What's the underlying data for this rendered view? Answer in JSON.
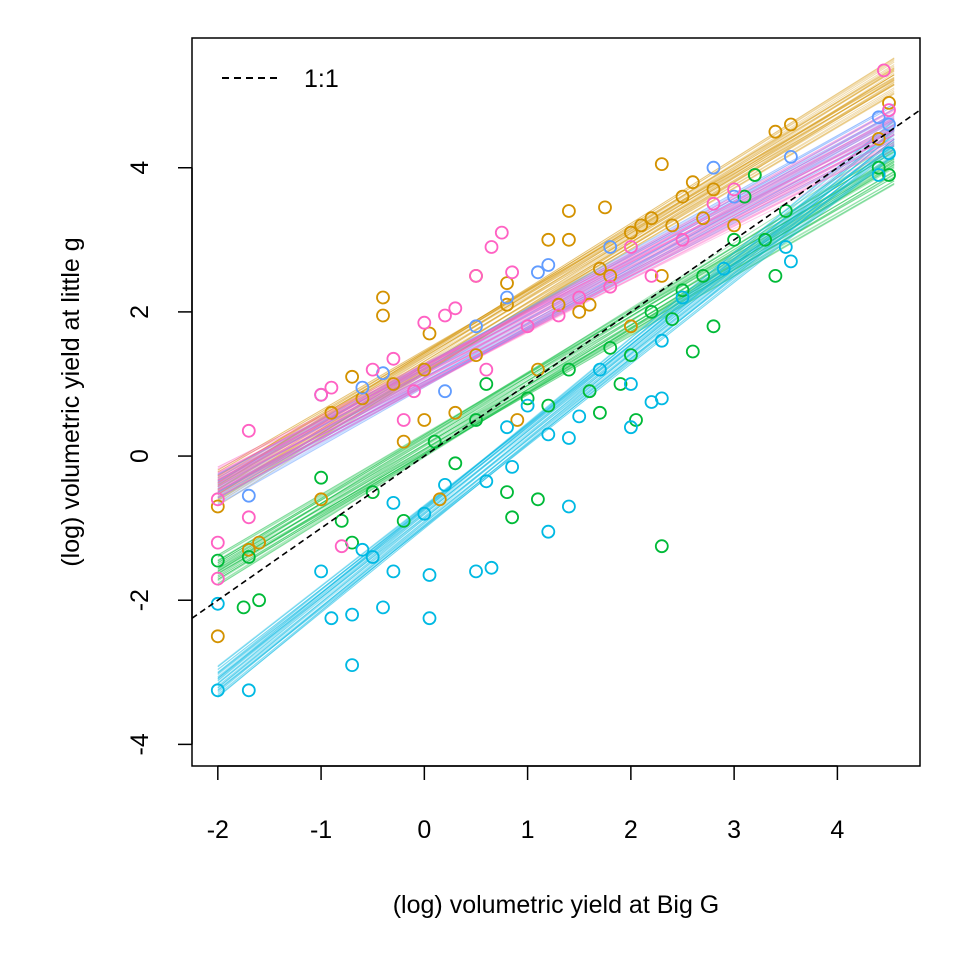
{
  "chart_data": {
    "type": "scatter",
    "title": "",
    "xlabel": "(log) volumetric yield at Big G",
    "ylabel": "(log) volumetric yield at little g",
    "xlim": [
      -2.25,
      4.8
    ],
    "ylim": [
      -4.3,
      5.8
    ],
    "xticks": [
      "-2",
      "-1",
      "0",
      "1",
      "2",
      "3",
      "4"
    ],
    "yticks": [
      "-4",
      "-2",
      "0",
      "2",
      "4"
    ],
    "grid": false,
    "legend": {
      "position": "top-left",
      "entries": [
        {
          "label": "1:1",
          "style": "dashed",
          "color": "#000000"
        }
      ]
    },
    "reference_line": {
      "label": "1:1",
      "slope": 1,
      "intercept": 0
    },
    "series": [
      {
        "color": "#D39200",
        "fit": {
          "x_range": [
            -2,
            4.55
          ],
          "intercept": 1.3,
          "slope": 0.87
        },
        "points": [
          [
            -2.0,
            -2.5
          ],
          [
            -2.0,
            -0.7
          ],
          [
            -1.7,
            -1.3
          ],
          [
            -1.6,
            -1.2
          ],
          [
            -1.0,
            -0.6
          ],
          [
            -0.9,
            0.6
          ],
          [
            -0.7,
            1.1
          ],
          [
            -0.6,
            0.8
          ],
          [
            -0.4,
            2.2
          ],
          [
            -0.4,
            1.95
          ],
          [
            -0.3,
            1.0
          ],
          [
            -0.2,
            0.2
          ],
          [
            0.0,
            0.5
          ],
          [
            0.0,
            1.2
          ],
          [
            0.05,
            1.7
          ],
          [
            0.15,
            -0.6
          ],
          [
            0.3,
            0.6
          ],
          [
            0.5,
            2.5
          ],
          [
            0.5,
            1.4
          ],
          [
            0.8,
            2.4
          ],
          [
            0.8,
            2.1
          ],
          [
            0.9,
            0.5
          ],
          [
            1.1,
            1.2
          ],
          [
            1.2,
            3.0
          ],
          [
            1.3,
            2.1
          ],
          [
            1.4,
            3.4
          ],
          [
            1.4,
            3.0
          ],
          [
            1.5,
            2.0
          ],
          [
            1.6,
            2.1
          ],
          [
            1.7,
            2.6
          ],
          [
            1.75,
            3.45
          ],
          [
            1.8,
            2.5
          ],
          [
            2.0,
            3.1
          ],
          [
            2.0,
            1.8
          ],
          [
            2.1,
            3.2
          ],
          [
            2.2,
            3.3
          ],
          [
            2.3,
            4.05
          ],
          [
            2.3,
            2.5
          ],
          [
            2.4,
            3.2
          ],
          [
            2.5,
            3.6
          ],
          [
            2.6,
            3.8
          ],
          [
            2.7,
            3.3
          ],
          [
            2.8,
            3.7
          ],
          [
            3.0,
            3.2
          ],
          [
            3.1,
            3.6
          ],
          [
            3.2,
            3.9
          ],
          [
            3.4,
            4.5
          ],
          [
            3.55,
            4.6
          ],
          [
            4.4,
            4.4
          ],
          [
            4.5,
            4.9
          ]
        ]
      },
      {
        "color": "#00BA38",
        "fit": {
          "x_range": [
            -2,
            4.55
          ],
          "intercept": 0.15,
          "slope": 0.86
        },
        "points": [
          [
            -2.0,
            -1.45
          ],
          [
            -1.75,
            -2.1
          ],
          [
            -1.7,
            -1.4
          ],
          [
            -1.6,
            -2.0
          ],
          [
            -1.0,
            -0.3
          ],
          [
            -0.8,
            -0.9
          ],
          [
            -0.7,
            -1.2
          ],
          [
            -0.5,
            -0.5
          ],
          [
            -0.2,
            -0.9
          ],
          [
            0.1,
            0.2
          ],
          [
            0.3,
            -0.1
          ],
          [
            0.5,
            0.5
          ],
          [
            0.6,
            1.0
          ],
          [
            0.8,
            -0.5
          ],
          [
            0.85,
            -0.85
          ],
          [
            1.0,
            0.8
          ],
          [
            1.1,
            -0.6
          ],
          [
            1.2,
            0.7
          ],
          [
            1.4,
            1.2
          ],
          [
            1.6,
            0.9
          ],
          [
            1.7,
            0.6
          ],
          [
            1.8,
            1.5
          ],
          [
            1.9,
            1.0
          ],
          [
            2.0,
            1.4
          ],
          [
            2.05,
            0.5
          ],
          [
            2.2,
            2.0
          ],
          [
            2.3,
            -1.25
          ],
          [
            2.4,
            1.9
          ],
          [
            2.5,
            2.3
          ],
          [
            2.6,
            1.45
          ],
          [
            2.7,
            2.5
          ],
          [
            2.8,
            1.8
          ],
          [
            3.0,
            3.0
          ],
          [
            3.1,
            3.6
          ],
          [
            3.2,
            3.9
          ],
          [
            3.3,
            3.0
          ],
          [
            3.4,
            2.5
          ],
          [
            3.5,
            3.4
          ],
          [
            4.4,
            4.0
          ],
          [
            4.5,
            3.9
          ]
        ]
      },
      {
        "color": "#00B9E3",
        "fit": {
          "x_range": [
            -2,
            4.55
          ],
          "intercept": -0.85,
          "slope": 1.15
        },
        "points": [
          [
            -2.0,
            -3.25
          ],
          [
            -2.0,
            -2.05
          ],
          [
            -1.7,
            -3.25
          ],
          [
            -1.0,
            -1.6
          ],
          [
            -0.9,
            -2.25
          ],
          [
            -0.7,
            -2.9
          ],
          [
            -0.7,
            -2.2
          ],
          [
            -0.6,
            -1.3
          ],
          [
            -0.5,
            -1.4
          ],
          [
            -0.4,
            -2.1
          ],
          [
            -0.3,
            -1.6
          ],
          [
            -0.3,
            -0.65
          ],
          [
            0.0,
            -0.8
          ],
          [
            0.05,
            -2.25
          ],
          [
            0.05,
            -1.65
          ],
          [
            0.2,
            -0.4
          ],
          [
            0.5,
            -1.6
          ],
          [
            0.6,
            -0.35
          ],
          [
            0.65,
            -1.55
          ],
          [
            0.8,
            0.4
          ],
          [
            0.85,
            -0.15
          ],
          [
            1.0,
            0.7
          ],
          [
            1.2,
            0.3
          ],
          [
            1.2,
            -1.05
          ],
          [
            1.4,
            0.25
          ],
          [
            1.4,
            -0.7
          ],
          [
            1.5,
            0.55
          ],
          [
            1.7,
            1.2
          ],
          [
            2.0,
            0.4
          ],
          [
            2.0,
            1.0
          ],
          [
            2.2,
            0.75
          ],
          [
            2.3,
            0.8
          ],
          [
            2.3,
            1.6
          ],
          [
            2.5,
            2.2
          ],
          [
            2.9,
            2.6
          ],
          [
            3.5,
            2.9
          ],
          [
            3.55,
            2.7
          ],
          [
            4.4,
            3.9
          ],
          [
            4.5,
            4.2
          ]
        ]
      },
      {
        "color": "#619CFF",
        "fit": {
          "x_range": [
            -2,
            4.55
          ],
          "intercept": 1.12,
          "slope": 0.78
        },
        "points": [
          [
            -1.7,
            -0.55
          ],
          [
            -1.0,
            0.85
          ],
          [
            -0.6,
            0.95
          ],
          [
            -0.4,
            1.15
          ],
          [
            0.2,
            0.9
          ],
          [
            0.5,
            1.8
          ],
          [
            0.8,
            2.2
          ],
          [
            1.1,
            2.55
          ],
          [
            1.2,
            2.65
          ],
          [
            1.8,
            2.9
          ],
          [
            2.8,
            4.0
          ],
          [
            3.0,
            3.6
          ],
          [
            3.55,
            4.15
          ],
          [
            4.4,
            4.7
          ],
          [
            4.5,
            4.6
          ]
        ]
      },
      {
        "color": "#FF61C3",
        "fit": {
          "x_range": [
            -2,
            4.55
          ],
          "intercept": 1.12,
          "slope": 0.75
        },
        "points": [
          [
            -2.0,
            -0.6
          ],
          [
            -2.0,
            -1.2
          ],
          [
            -2.0,
            -1.7
          ],
          [
            -1.7,
            0.35
          ],
          [
            -1.7,
            -0.85
          ],
          [
            -1.0,
            0.85
          ],
          [
            -0.9,
            0.95
          ],
          [
            -0.8,
            -1.25
          ],
          [
            -0.5,
            1.2
          ],
          [
            -0.3,
            1.35
          ],
          [
            -0.2,
            0.5
          ],
          [
            -0.1,
            0.9
          ],
          [
            0.0,
            1.85
          ],
          [
            0.2,
            1.95
          ],
          [
            0.3,
            2.05
          ],
          [
            0.5,
            2.5
          ],
          [
            0.6,
            1.2
          ],
          [
            0.65,
            2.9
          ],
          [
            0.75,
            3.1
          ],
          [
            0.85,
            2.55
          ],
          [
            1.0,
            1.8
          ],
          [
            1.3,
            1.95
          ],
          [
            1.5,
            2.2
          ],
          [
            1.8,
            2.35
          ],
          [
            2.0,
            2.9
          ],
          [
            2.2,
            2.5
          ],
          [
            2.5,
            3.0
          ],
          [
            2.8,
            3.5
          ],
          [
            3.0,
            3.7
          ],
          [
            4.45,
            5.35
          ],
          [
            4.5,
            4.8
          ]
        ]
      }
    ]
  }
}
